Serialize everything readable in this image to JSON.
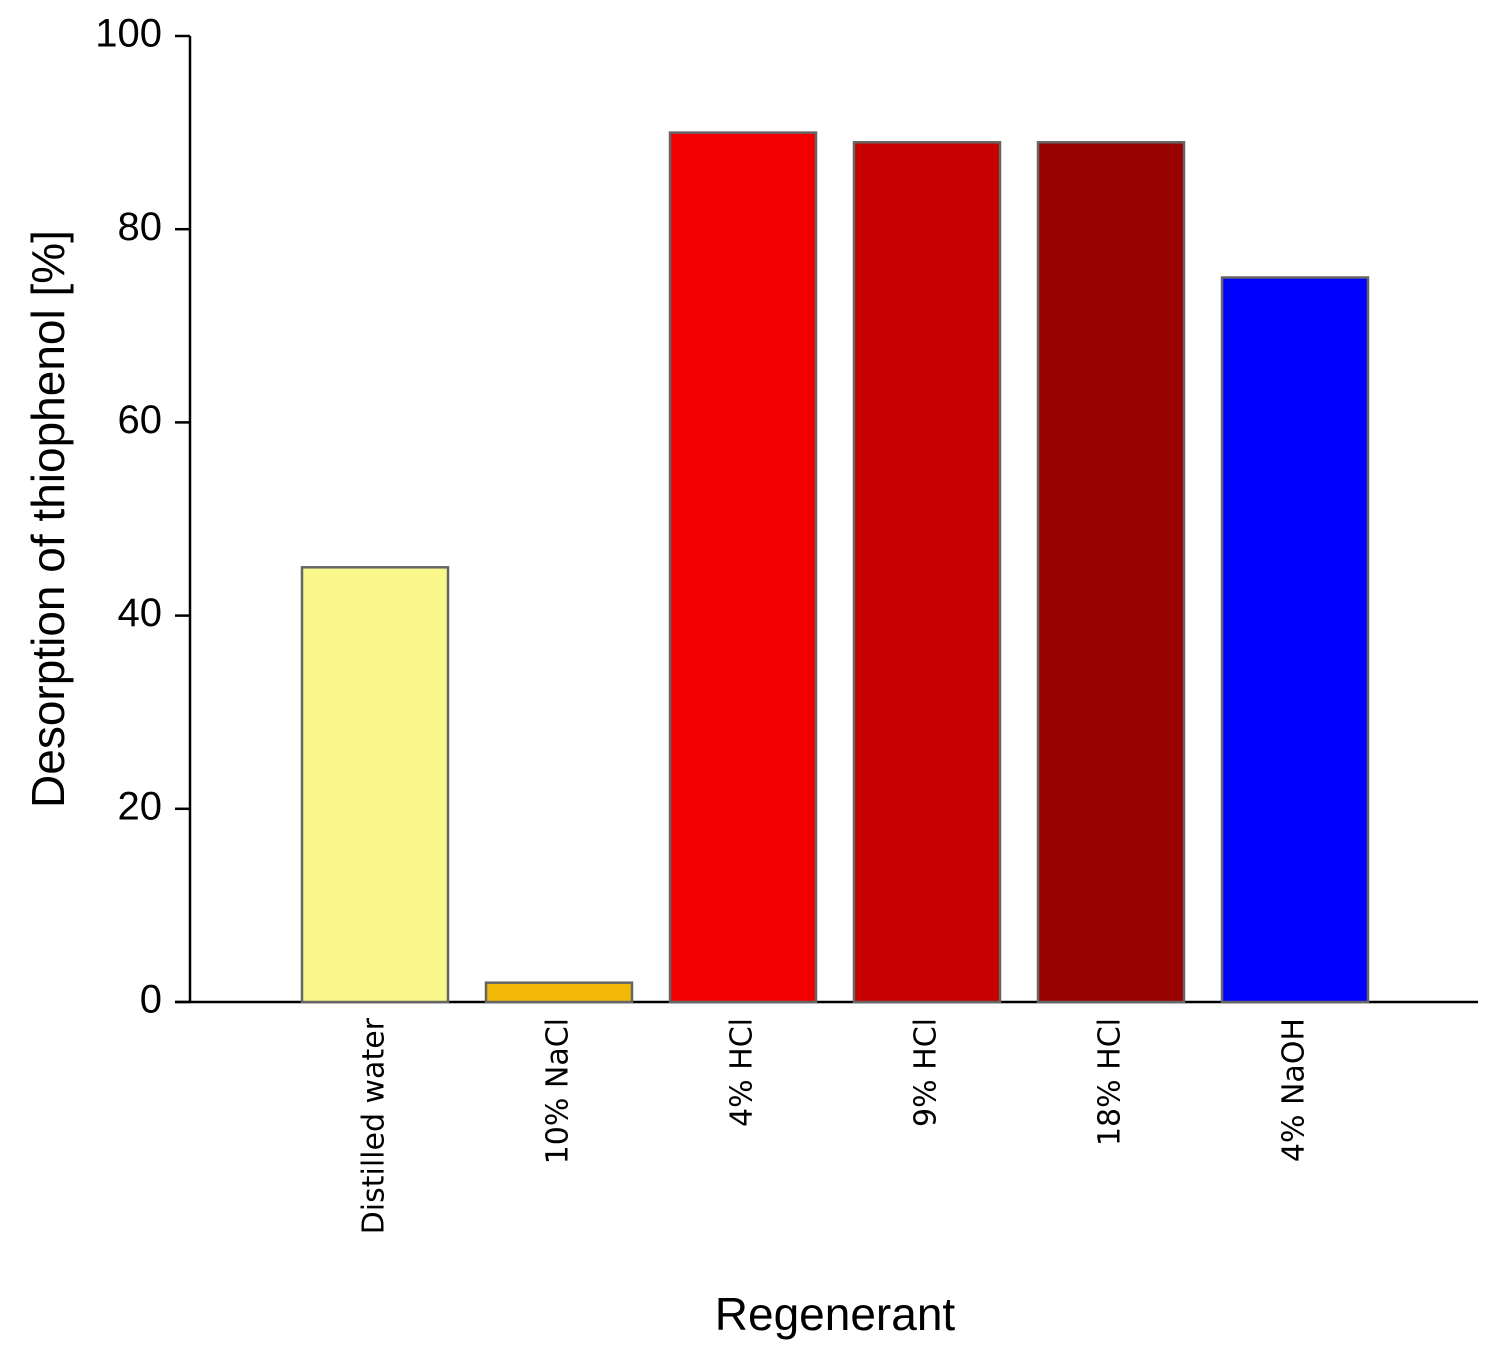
{
  "chart_data": {
    "type": "bar",
    "x_label": "Regenerant",
    "y_label": "Desorption of thiophenol [%]",
    "categories": [
      "Distilled water",
      "10% NaCl",
      "4% HCl",
      "9% HCl",
      "18% HCl",
      "4% NaOH"
    ],
    "values": [
      45,
      2,
      90,
      89,
      89,
      75
    ],
    "colors": [
      "#faf88a",
      "#f2b807",
      "#f20000",
      "#c80000",
      "#990000",
      "#0000ff"
    ],
    "ylim": [
      0,
      100
    ],
    "yticks": [
      0,
      20,
      40,
      60,
      80,
      100
    ]
  }
}
